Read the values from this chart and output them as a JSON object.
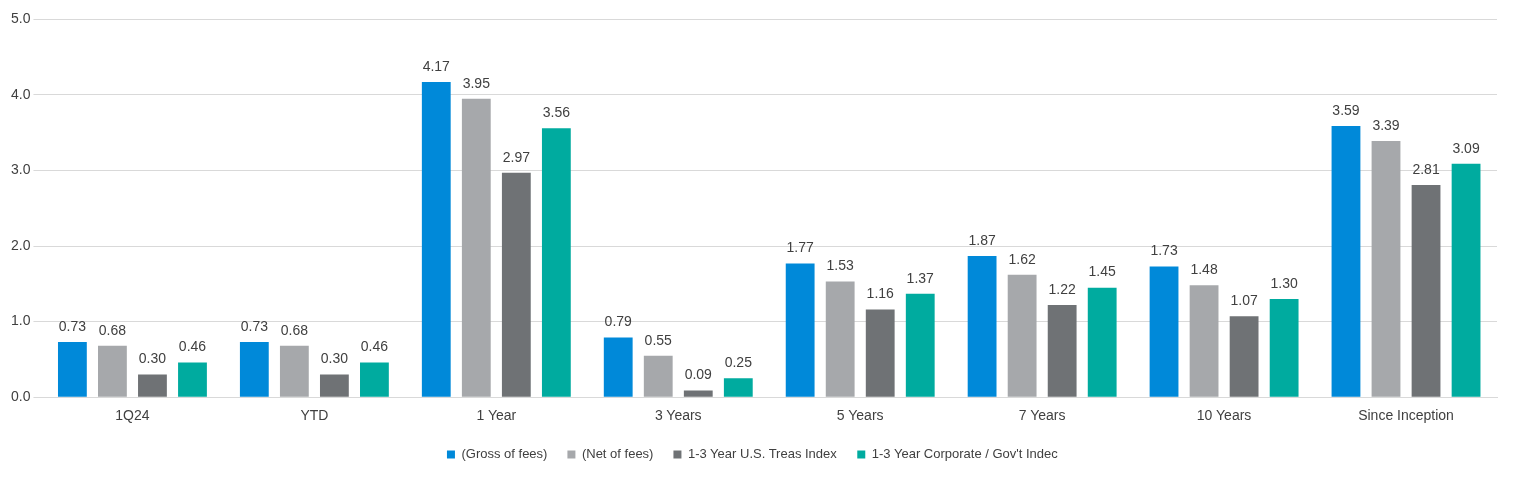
{
  "chart_data": {
    "type": "bar",
    "categories": [
      "1Q24",
      "YTD",
      "1 Year",
      "3 Years",
      "5 Years",
      "7 Years",
      "10 Years",
      "Since Inception"
    ],
    "series": [
      {
        "name": "(Gross of fees)",
        "color": "#0089d9",
        "values": [
          0.73,
          0.73,
          4.17,
          0.79,
          1.77,
          1.87,
          1.73,
          3.59
        ],
        "value_labels": [
          "0.73",
          "0.73",
          "4.17",
          "0.79",
          "1.77",
          "1.87",
          "1.73",
          "3.59"
        ]
      },
      {
        "name": "(Net of fees)",
        "color": "#a6a8ab",
        "values": [
          0.68,
          0.68,
          3.95,
          0.55,
          1.53,
          1.62,
          1.48,
          3.39
        ],
        "value_labels": [
          "0.68",
          "0.68",
          "3.95",
          "0.55",
          "1.53",
          "1.62",
          "1.48",
          "3.39"
        ]
      },
      {
        "name": "1-3 Year U.S. Treas Index",
        "color": "#6f7275",
        "values": [
          0.3,
          0.3,
          2.97,
          0.09,
          1.16,
          1.22,
          1.07,
          2.81
        ],
        "value_labels": [
          "0.30",
          "0.30",
          "2.97",
          "0.09",
          "1.16",
          "1.22",
          "1.07",
          "2.81"
        ]
      },
      {
        "name": "1-3 Year Corporate / Gov't Indec",
        "color": "#00ab9f",
        "values": [
          0.46,
          0.46,
          3.56,
          0.25,
          1.37,
          1.45,
          1.3,
          3.09
        ],
        "value_labels": [
          "0.46",
          "0.46",
          "3.56",
          "0.25",
          "1.37",
          "1.45",
          "1.30",
          "3.09"
        ]
      }
    ],
    "ylim": [
      0,
      5
    ],
    "yticks": [
      {
        "value": 0,
        "label": "0.0"
      },
      {
        "value": 1,
        "label": "1.0"
      },
      {
        "value": 2,
        "label": "2.0"
      },
      {
        "value": 3,
        "label": "3.0"
      },
      {
        "value": 4,
        "label": "4.0"
      },
      {
        "value": 5,
        "label": "5.0"
      }
    ],
    "grid": "y",
    "legend": "bottom"
  }
}
